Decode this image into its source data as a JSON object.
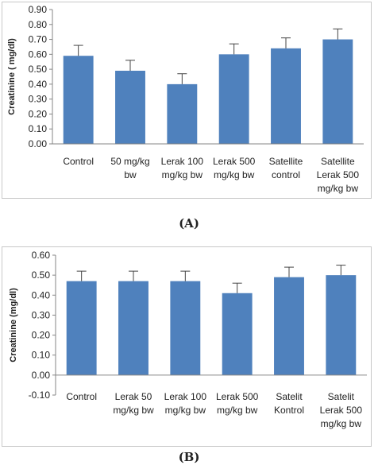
{
  "chart_data": [
    {
      "type": "bar",
      "panel_label": "(A)",
      "ylabel": "Creatinine ( mg/dl)",
      "xlabel": "",
      "ylim": [
        0,
        0.9
      ],
      "yticks": [
        "0.00",
        "0.10",
        "0.20",
        "0.30",
        "0.40",
        "0.50",
        "0.60",
        "0.70",
        "0.80",
        "0.90"
      ],
      "categories": [
        [
          "Control"
        ],
        [
          "50 mg/kg",
          "bw"
        ],
        [
          "Lerak 100",
          "mg/kg bw"
        ],
        [
          "Lerak 500",
          "mg/kg bw"
        ],
        [
          "Satellite",
          "control"
        ],
        [
          "Satellite",
          "Lerak 500",
          "mg/kg bw"
        ]
      ],
      "values": [
        0.59,
        0.49,
        0.4,
        0.6,
        0.64,
        0.7
      ],
      "errors": [
        0.07,
        0.07,
        0.07,
        0.07,
        0.07,
        0.07
      ],
      "bar_color": "#4f81bd",
      "grid": false
    },
    {
      "type": "bar",
      "panel_label": "(B)",
      "ylabel": "Creatinine (mg/dl)",
      "xlabel": "",
      "ylim": [
        -0.1,
        0.6
      ],
      "yticks": [
        "-0.10",
        "0.00",
        "0.10",
        "0.20",
        "0.30",
        "0.40",
        "0.50",
        "0.60"
      ],
      "categories": [
        [
          "Control"
        ],
        [
          "Lerak 50",
          "mg/kg bw"
        ],
        [
          "Lerak 100",
          "mg/kg bw"
        ],
        [
          "Lerak 500",
          "mg/kg bw"
        ],
        [
          "Satelit",
          "Kontrol"
        ],
        [
          "Satelit",
          "Lerak 500",
          "mg/kg bw"
        ]
      ],
      "values": [
        0.47,
        0.47,
        0.47,
        0.41,
        0.49,
        0.5
      ],
      "errors": [
        0.05,
        0.05,
        0.05,
        0.05,
        0.05,
        0.05
      ],
      "bar_color": "#4f81bd",
      "grid": false
    }
  ]
}
